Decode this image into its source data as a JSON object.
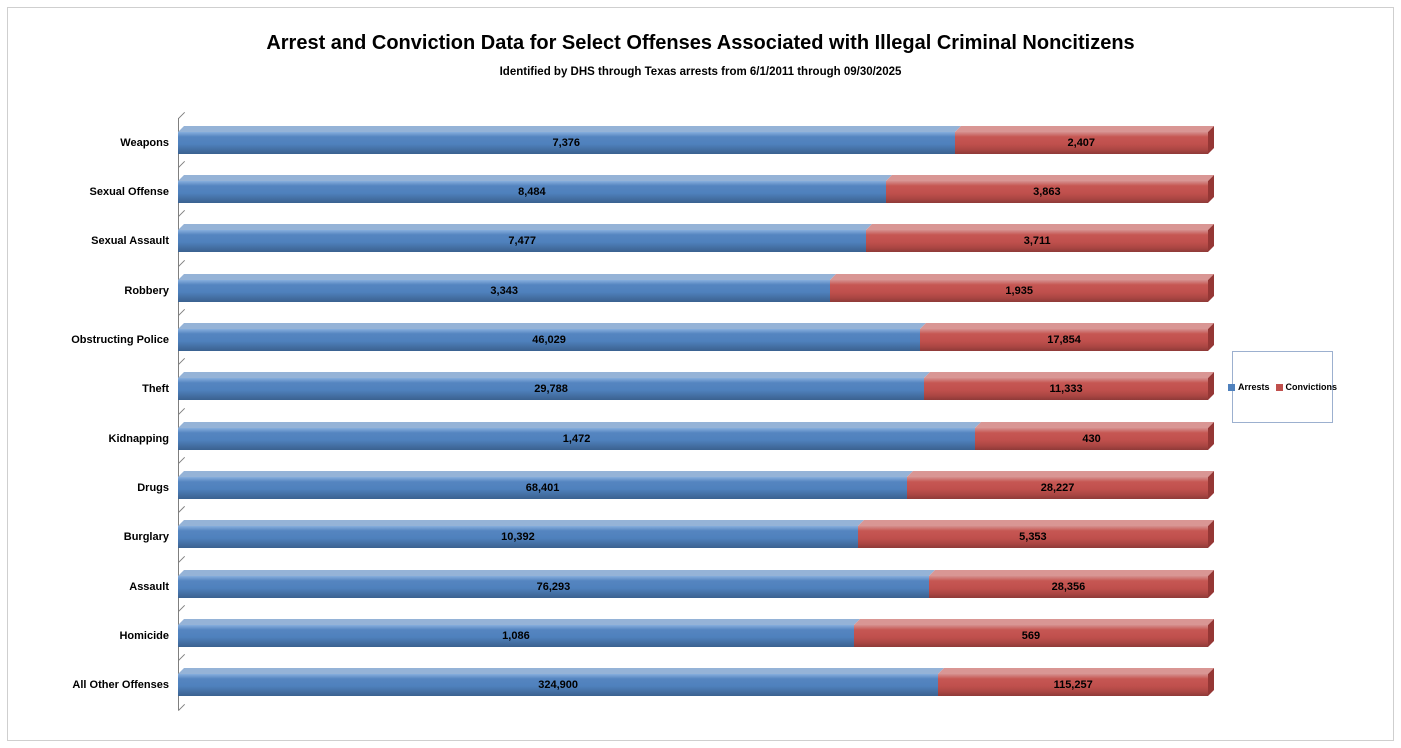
{
  "chart_data": {
    "type": "bar",
    "variant": "horizontal-stacked-3d",
    "title": "Arrest and Conviction Data for Select Offenses Associated with Illegal Criminal Noncitizens",
    "subtitle": "Identified by DHS through Texas arrests from 6/1/2011 through 09/30/2025",
    "legend_position": "right",
    "grid": false,
    "categories": [
      "Weapons",
      "Sexual Offense",
      "Sexual Assault",
      "Robbery",
      "Obstructing Police",
      "Theft",
      "Kidnapping",
      "Drugs",
      "Burglary",
      "Assault",
      "Homicide",
      "All Other Offenses"
    ],
    "series": [
      {
        "name": "Arrests",
        "color": "#4F81BD",
        "values": [
          7376,
          8484,
          7477,
          3343,
          46029,
          29788,
          1472,
          68401,
          10392,
          76293,
          1086,
          324900
        ],
        "labels": [
          "7,376",
          "8,484",
          "7,477",
          "3,343",
          "46,029",
          "29,788",
          "1,472",
          "68,401",
          "10,392",
          "76,293",
          "1,086",
          "324,900"
        ]
      },
      {
        "name": "Convictions",
        "color": "#C0504D",
        "values": [
          2407,
          3863,
          3711,
          1935,
          17854,
          11333,
          430,
          28227,
          5353,
          28356,
          569,
          115257
        ],
        "labels": [
          "2,407",
          "3,863",
          "3,711",
          "1,935",
          "17,854",
          "11,333",
          "430",
          "28,227",
          "5,353",
          "28,356",
          "569",
          "115,257"
        ]
      }
    ]
  }
}
